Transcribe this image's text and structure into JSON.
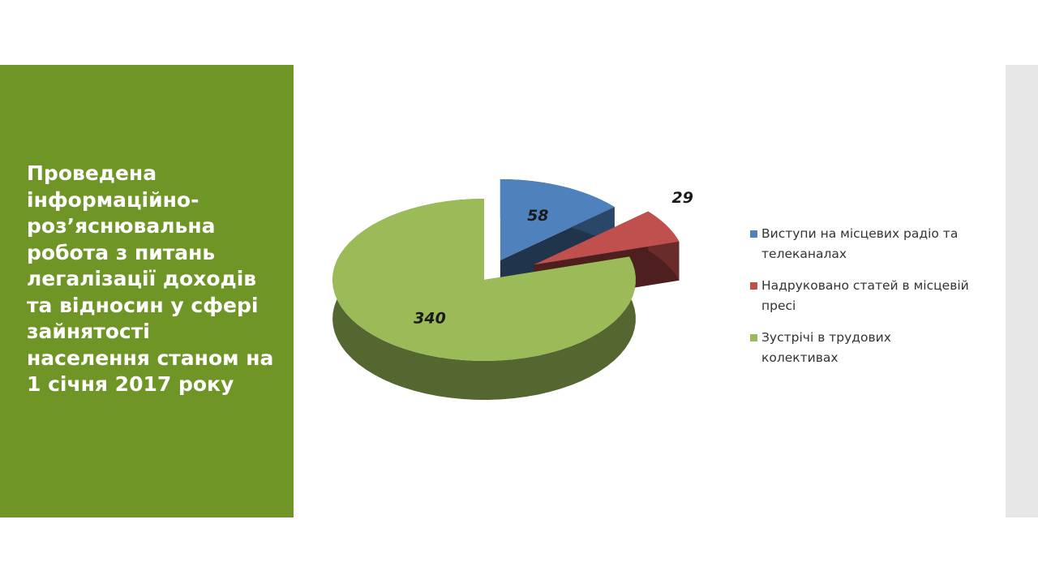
{
  "chart_data": {
    "type": "pie3d",
    "title": "Проведена інформаційно-роз’яснювальна робота з питань легалізації доходів та відносин у сфері зайнятості населення станом на 1 січня 2017 року",
    "categories": [
      "Виступи на місцевих радіо та телеканалах",
      "Надруковано статей в місцевій пресі",
      "Зустрічі в трудових колективах"
    ],
    "values": [
      58,
      29,
      340
    ],
    "colors": [
      "#4f81bd",
      "#c0504d",
      "#9bbb59"
    ],
    "legend": "right"
  }
}
